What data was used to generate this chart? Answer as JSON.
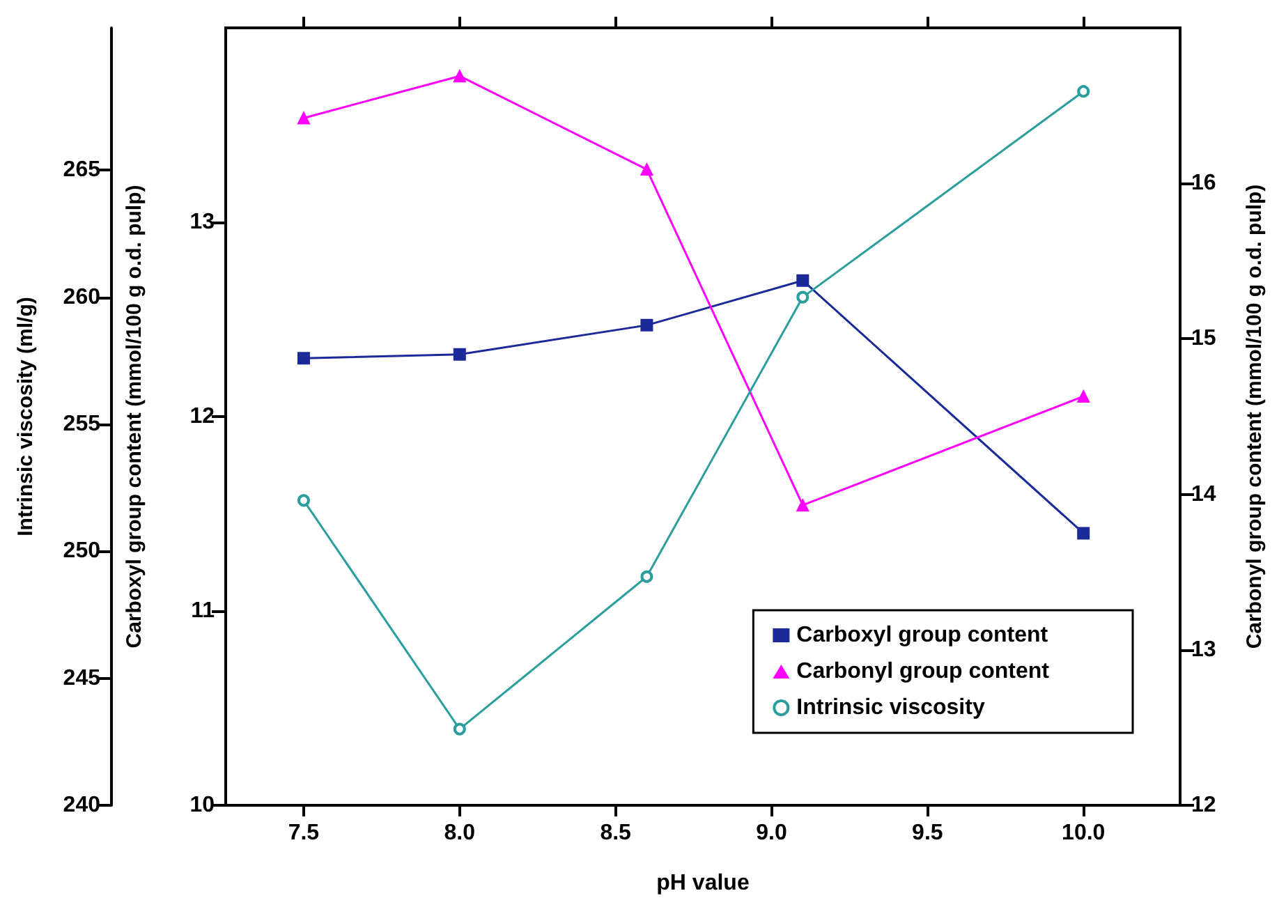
{
  "chart_data": {
    "type": "line",
    "x": [
      7.5,
      8.0,
      8.6,
      9.1,
      10.0
    ],
    "xlabel": "pH value",
    "ylabel": "Carboxyl group content (mmol/100 g o.d. pulp)",
    "y2label": "Carbonyl group content (mmol/100 g o.d. pulp)",
    "y3label": "Intrinsic viscosity (ml/g)",
    "xlim": [
      7.25,
      10.31
    ],
    "xticks": [
      {
        "value": 7.5,
        "label": "7.5"
      },
      {
        "value": 8.0,
        "label": "8.0"
      },
      {
        "value": 8.5,
        "label": "8.5"
      },
      {
        "value": 9.0,
        "label": "9.0"
      },
      {
        "value": 9.5,
        "label": "9.5"
      },
      {
        "value": 10.0,
        "label": "10.0"
      }
    ],
    "ylim": [
      10,
      14
    ],
    "yticks": [
      10,
      11,
      12,
      13
    ],
    "y2lim": [
      12,
      17
    ],
    "y2ticks": [
      12,
      13,
      14,
      15,
      16
    ],
    "y3lim": [
      240,
      270.6
    ],
    "y3ticks": [
      240,
      245,
      250,
      255,
      260,
      265
    ],
    "series": [
      {
        "name": "Carboxyl group content",
        "color": "#1a2a99",
        "marker": "square",
        "values": [
          12.3,
          12.32,
          12.47,
          12.7,
          11.4
        ]
      },
      {
        "name": "Carbonyl group content",
        "color": "#ff00ff",
        "marker": "triangle",
        "axis": "y2",
        "values": [
          16.42,
          16.69,
          16.09,
          13.93,
          14.63
        ]
      },
      {
        "name": "Intrinsic viscosity",
        "color": "#2a9d9d",
        "marker": "circle",
        "axis": "y3",
        "values": [
          252.0,
          243.0,
          249.0,
          260.0,
          268.1
        ]
      }
    ],
    "grid": false,
    "legend": "bottom right",
    "line_style": "solid"
  }
}
